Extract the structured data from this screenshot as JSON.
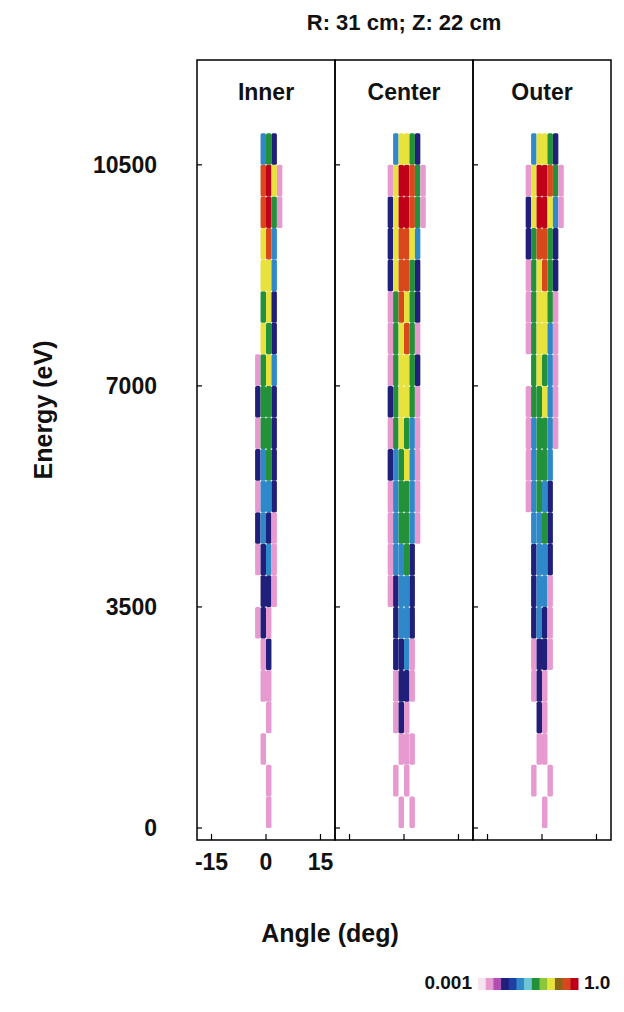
{
  "chart_data": {
    "type": "heatmap",
    "title": "R: 31 cm; Z: 22 cm",
    "x_label": "Angle (deg)",
    "y_label": "Energy (eV)",
    "xlim": [
      -19,
      19
    ],
    "xticks": [
      -15,
      0,
      15
    ],
    "ylim": [
      -190,
      12160
    ],
    "yticks": [
      0,
      3500,
      7000,
      10500
    ],
    "tick_labels": "x",
    "x_edges": [
      -6,
      -4.5,
      -3,
      -1.5,
      0,
      1.5,
      3,
      4.5,
      6
    ],
    "y_edges": [
      0,
      500,
      1000,
      1500,
      2000,
      2500,
      3000,
      3500,
      4000,
      4500,
      5000,
      5500,
      6000,
      6500,
      7000,
      7500,
      8000,
      8500,
      9000,
      9500,
      10000,
      10500,
      11000
    ],
    "colorbar": {
      "range": [
        0.001,
        1
      ],
      "log": true,
      "ticks": [
        {
          "value": 0.001,
          "label": "0.001"
        },
        {
          "value": 1,
          "label": "1.0"
        }
      ],
      "colors": [
        "#f6e4ee",
        "#e79ad0",
        "#b04fb0",
        "#20207a",
        "#1f3fa8",
        "#2f88c8",
        "#6cc6d6",
        "#23903a",
        "#8cc63c",
        "#e8e23c",
        "#8a6418",
        "#d8481a",
        "#c00018"
      ]
    },
    "panels": [
      {
        "title": "Inner",
        "cells": [
          [
            0,
            0,
            0,
            0,
            0.002,
            0,
            0,
            0
          ],
          [
            0,
            0,
            0,
            0,
            0.002,
            0,
            0,
            0
          ],
          [
            0,
            0,
            0,
            0.002,
            0,
            0,
            0,
            0
          ],
          [
            0,
            0,
            0,
            0,
            0.002,
            0,
            0,
            0
          ],
          [
            0,
            0,
            0,
            0.002,
            0.002,
            0,
            0,
            0
          ],
          [
            0,
            0,
            0,
            0.002,
            0.008,
            0,
            0,
            0
          ],
          [
            0,
            0,
            0.002,
            0.008,
            0.002,
            0,
            0,
            0
          ],
          [
            0,
            0,
            0,
            0.008,
            0.008,
            0.002,
            0,
            0
          ],
          [
            0,
            0,
            0.002,
            0.008,
            0.02,
            0.002,
            0,
            0
          ],
          [
            0,
            0,
            0.008,
            0.02,
            0.008,
            0.002,
            0,
            0
          ],
          [
            0,
            0,
            0.002,
            0.02,
            0.02,
            0.008,
            0,
            0
          ],
          [
            0,
            0,
            0.008,
            0.02,
            0.06,
            0.008,
            0,
            0
          ],
          [
            0,
            0,
            0.002,
            0.06,
            0.06,
            0.008,
            0,
            0
          ],
          [
            0,
            0,
            0.008,
            0.06,
            0.06,
            0.008,
            0,
            0
          ],
          [
            0,
            0,
            0.002,
            0.06,
            0.15,
            0.02,
            0,
            0
          ],
          [
            0,
            0,
            0,
            0.15,
            0.06,
            0.008,
            0,
            0
          ],
          [
            0,
            0,
            0,
            0.06,
            0.15,
            0.008,
            0,
            0
          ],
          [
            0,
            0,
            0,
            0.15,
            0.15,
            0.02,
            0,
            0
          ],
          [
            0,
            0,
            0,
            0.15,
            0.4,
            0.02,
            0,
            0
          ],
          [
            0,
            0,
            0,
            0.4,
            0.9,
            0.06,
            0.002,
            0
          ],
          [
            0,
            0,
            0,
            0.4,
            0.9,
            0.15,
            0.002,
            0
          ],
          [
            0,
            0,
            0,
            0.02,
            0.06,
            0.008,
            0,
            0
          ]
        ]
      },
      {
        "title": "Center",
        "cells": [
          [
            0,
            0,
            0,
            0.002,
            0,
            0.002,
            0,
            0
          ],
          [
            0,
            0,
            0.002,
            0,
            0.002,
            0,
            0,
            0
          ],
          [
            0,
            0,
            0,
            0.002,
            0.002,
            0.002,
            0,
            0
          ],
          [
            0,
            0,
            0.002,
            0.008,
            0.002,
            0,
            0,
            0
          ],
          [
            0,
            0,
            0.002,
            0.008,
            0.008,
            0.002,
            0,
            0
          ],
          [
            0,
            0,
            0.008,
            0.008,
            0.02,
            0.002,
            0,
            0
          ],
          [
            0,
            0,
            0.008,
            0.02,
            0.02,
            0.008,
            0,
            0
          ],
          [
            0,
            0.002,
            0.008,
            0.02,
            0.02,
            0.008,
            0,
            0
          ],
          [
            0,
            0.002,
            0.02,
            0.02,
            0.06,
            0.008,
            0,
            0
          ],
          [
            0,
            0.002,
            0.02,
            0.06,
            0.06,
            0.02,
            0.002,
            0
          ],
          [
            0,
            0.002,
            0.02,
            0.06,
            0.06,
            0.02,
            0.002,
            0
          ],
          [
            0,
            0.008,
            0.02,
            0.06,
            0.15,
            0.02,
            0.002,
            0
          ],
          [
            0,
            0.002,
            0.06,
            0.15,
            0.06,
            0.02,
            0.002,
            0
          ],
          [
            0,
            0.008,
            0.06,
            0.15,
            0.15,
            0.06,
            0.002,
            0
          ],
          [
            0,
            0.002,
            0.06,
            0.15,
            0.15,
            0.06,
            0.008,
            0
          ],
          [
            0,
            0.002,
            0.06,
            0.15,
            0.4,
            0.06,
            0.002,
            0
          ],
          [
            0,
            0.002,
            0.06,
            0.4,
            0.15,
            0.06,
            0.008,
            0
          ],
          [
            0,
            0.008,
            0.15,
            0.4,
            0.4,
            0.06,
            0.008,
            0
          ],
          [
            0,
            0.008,
            0.15,
            0.4,
            0.4,
            0.15,
            0.02,
            0
          ],
          [
            0,
            0.008,
            0.15,
            0.9,
            0.9,
            0.4,
            0.06,
            0.002
          ],
          [
            0,
            0.002,
            0.15,
            0.9,
            0.9,
            0.4,
            0.06,
            0.002
          ],
          [
            0,
            0,
            0.02,
            0.15,
            0.15,
            0.06,
            0.008,
            0
          ]
        ]
      },
      {
        "title": "Outer",
        "cells": [
          [
            0,
            0,
            0,
            0,
            0.002,
            0,
            0,
            0
          ],
          [
            0,
            0,
            0.002,
            0,
            0,
            0.002,
            0,
            0
          ],
          [
            0,
            0,
            0,
            0.002,
            0.002,
            0,
            0,
            0
          ],
          [
            0,
            0,
            0,
            0.008,
            0.002,
            0,
            0,
            0
          ],
          [
            0,
            0,
            0.002,
            0.008,
            0.002,
            0,
            0,
            0
          ],
          [
            0,
            0,
            0.002,
            0.008,
            0.008,
            0.002,
            0,
            0
          ],
          [
            0,
            0,
            0.008,
            0.02,
            0.008,
            0.002,
            0,
            0
          ],
          [
            0,
            0,
            0.008,
            0.02,
            0.02,
            0.002,
            0,
            0
          ],
          [
            0,
            0,
            0.008,
            0.02,
            0.02,
            0.008,
            0,
            0
          ],
          [
            0,
            0,
            0.02,
            0.02,
            0.06,
            0.008,
            0,
            0
          ],
          [
            0,
            0.002,
            0.02,
            0.06,
            0.02,
            0.008,
            0,
            0
          ],
          [
            0,
            0.002,
            0.02,
            0.06,
            0.06,
            0.02,
            0,
            0
          ],
          [
            0,
            0.002,
            0.02,
            0.06,
            0.06,
            0.02,
            0.002,
            0
          ],
          [
            0,
            0.002,
            0.06,
            0.06,
            0.15,
            0.02,
            0.002,
            0
          ],
          [
            0,
            0,
            0.06,
            0.15,
            0.06,
            0.02,
            0.002,
            0
          ],
          [
            0,
            0.002,
            0.06,
            0.15,
            0.15,
            0.02,
            0.002,
            0
          ],
          [
            0,
            0.002,
            0.06,
            0.15,
            0.15,
            0.06,
            0.002,
            0
          ],
          [
            0,
            0.002,
            0.06,
            0.15,
            0.4,
            0.06,
            0.008,
            0
          ],
          [
            0,
            0.008,
            0.06,
            0.4,
            0.4,
            0.06,
            0.008,
            0
          ],
          [
            0,
            0.008,
            0.15,
            0.9,
            0.9,
            0.15,
            0.02,
            0.002
          ],
          [
            0,
            0.002,
            0.15,
            0.9,
            0.9,
            0.4,
            0.06,
            0.002
          ],
          [
            0,
            0,
            0.02,
            0.15,
            0.15,
            0.06,
            0.008,
            0
          ]
        ]
      }
    ]
  }
}
